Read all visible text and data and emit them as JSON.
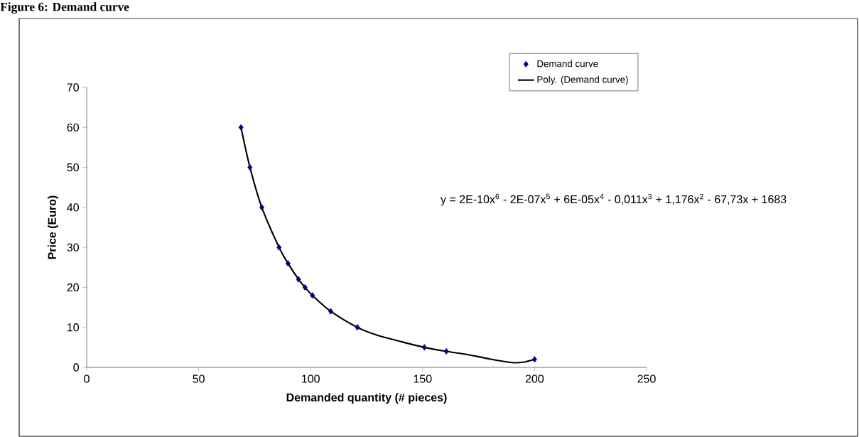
{
  "chart_data": {
    "type": "scatter",
    "title": "Figure 6: Demand curve",
    "xlabel": "Demanded quantity (# pieces)",
    "ylabel": "Price (Euro)",
    "xlim": [
      0,
      250
    ],
    "xticks": [
      0,
      50,
      100,
      150,
      200,
      250
    ],
    "ylim": [
      0,
      70
    ],
    "yticks": [
      0,
      10,
      20,
      30,
      40,
      50,
      60,
      70
    ],
    "grid": false,
    "legend": "top right",
    "annotations": [
      "y = 2E-10x$^{6}$ - 2E-07x$^{5}$ + 6E-05x$^{4}$ - 0,011x$^{3}$ + 1,176x$^{2}$ - 67,73x + 1683"
    ],
    "series": [
      {
        "name": "Demand curve",
        "type": "scatter",
        "color": "#000080",
        "marker": "diamond",
        "x": [
          68.9,
          72.9,
          78.2,
          85.9,
          89.9,
          94.6,
          97.5,
          100.8,
          109,
          120.9,
          150.8,
          160.6,
          200
        ],
        "values": [
          60,
          50,
          40,
          30,
          26,
          22,
          20,
          18,
          14,
          10,
          5,
          4,
          2
        ]
      },
      {
        "name": "Poly. (Demand curve)",
        "type": "line",
        "color": "#000000",
        "marker": "none",
        "line_style": "solid",
        "x": [
          68.9,
          72.9,
          78.2,
          85.9,
          89.9,
          94.6,
          97.5,
          100.8,
          109,
          120.9,
          130,
          140,
          150.8,
          160.6,
          170,
          180,
          190,
          195,
          200
        ],
        "values": [
          60,
          50,
          40,
          30,
          26,
          22,
          20,
          18,
          14,
          10,
          8,
          6.5,
          5,
          4,
          3.2,
          2.1,
          1.2,
          1.3,
          2
        ]
      }
    ]
  }
}
